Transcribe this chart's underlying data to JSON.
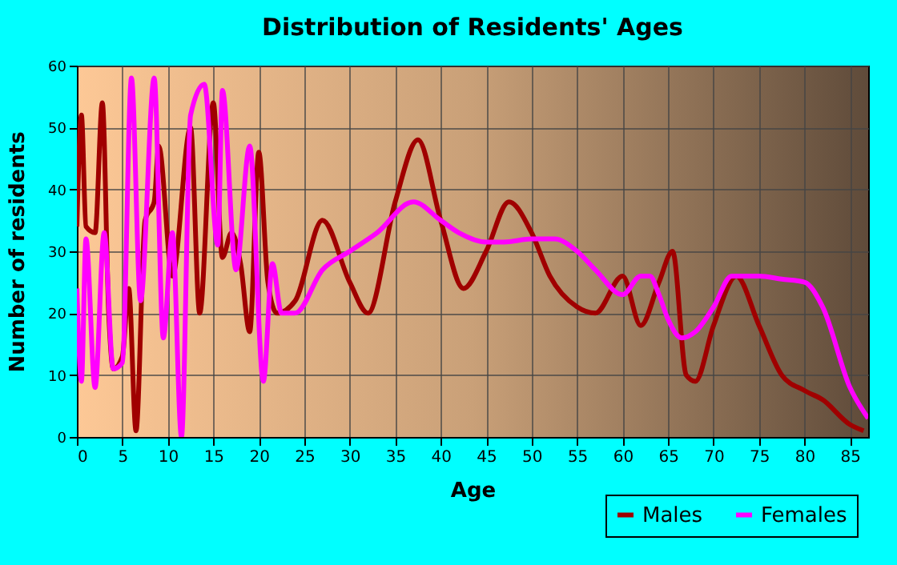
{
  "chart_data": {
    "type": "line",
    "title": "Distribution of Residents' Ages",
    "xlabel": "Age",
    "ylabel": "Number of residents",
    "xlim": [
      0,
      87
    ],
    "xticks": [
      0,
      5,
      10,
      15,
      20,
      25,
      30,
      35,
      40,
      45,
      50,
      55,
      60,
      65,
      70,
      75,
      80,
      85
    ],
    "ylim": [
      0,
      60
    ],
    "yticks": [
      0,
      10,
      20,
      30,
      40,
      50,
      60
    ],
    "grid": true,
    "legend": "bottom right",
    "line_style": "solid",
    "series": [
      {
        "name": "Males",
        "color": "#a00000",
        "x": [
          0,
          0.5,
          1,
          2,
          2.8,
          3.5,
          4,
          5,
          5.7,
          6.5,
          7.5,
          8.5,
          9,
          10.5,
          12.5,
          13.5,
          15,
          16,
          17,
          18,
          19,
          20,
          21,
          22,
          24,
          27,
          30,
          32,
          35,
          37.5,
          40,
          42.5,
          45,
          47.5,
          50,
          52,
          55,
          57,
          60,
          62,
          64,
          65.5,
          67,
          68,
          70,
          72.5,
          75,
          77.5,
          80,
          82,
          85,
          86.5
        ],
        "values": [
          34,
          52,
          34,
          33,
          54,
          20,
          11,
          13,
          24,
          1,
          35,
          38,
          47,
          26,
          50,
          20,
          54,
          29,
          33,
          28,
          17,
          46,
          25,
          20,
          22,
          35,
          25,
          20,
          38,
          48,
          35,
          24,
          30,
          38,
          33,
          26,
          21,
          20,
          26,
          18,
          25,
          30,
          10,
          9,
          18,
          26,
          18,
          10,
          7.5,
          6,
          2,
          1
        ]
      },
      {
        "name": "Females",
        "color": "#ff00ff",
        "x": [
          0,
          0.5,
          1,
          2,
          3,
          4,
          5,
          6,
          7,
          8.5,
          9.5,
          10.5,
          11.5,
          12.5,
          14,
          15.5,
          16,
          17.5,
          19,
          20.5,
          21.5,
          22.5,
          24,
          27,
          30,
          33,
          37,
          40,
          42,
          45,
          47,
          50,
          52.5,
          55,
          57,
          60,
          62,
          63,
          64,
          65,
          66.5,
          68,
          70,
          72,
          75,
          77.5,
          80,
          82,
          85,
          87
        ],
        "values": [
          24,
          9,
          32,
          8,
          33,
          11,
          12,
          58,
          22,
          58,
          16,
          33,
          0,
          52,
          57,
          31,
          56,
          27,
          47,
          9,
          28,
          20,
          20,
          27,
          30,
          33,
          38,
          35,
          33,
          31.5,
          31.5,
          32,
          32,
          30,
          27,
          23,
          26,
          26,
          23,
          19,
          16,
          17,
          21,
          26,
          26,
          25.5,
          25,
          21,
          8,
          3
        ]
      }
    ]
  }
}
